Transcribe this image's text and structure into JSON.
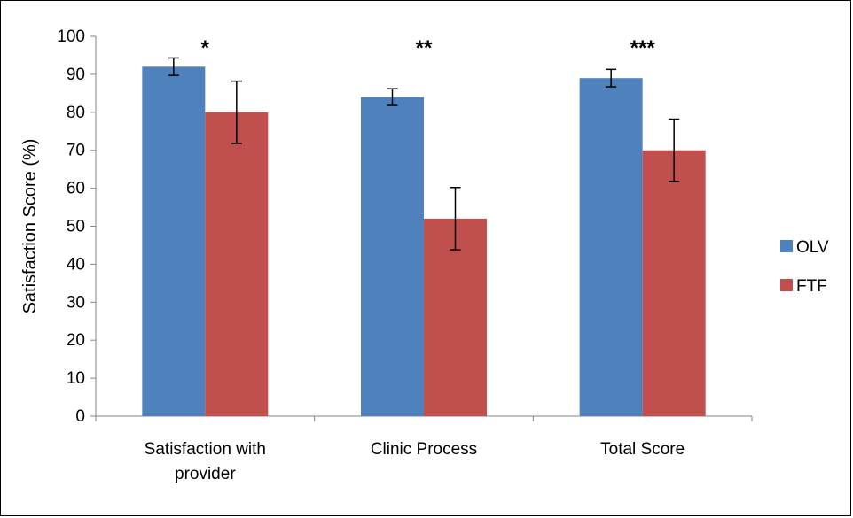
{
  "chart_data": {
    "type": "bar",
    "title": "",
    "xlabel": "",
    "ylabel": "Satisfaction Score (%)",
    "ylim": [
      0,
      100
    ],
    "yticks": [
      0,
      10,
      20,
      30,
      40,
      50,
      60,
      70,
      80,
      90,
      100
    ],
    "grid": false,
    "legend_position": "right",
    "categories": [
      [
        "Satisfaction with",
        "provider"
      ],
      [
        "Clinic Process"
      ],
      [
        "Total Score"
      ]
    ],
    "significance": [
      "*",
      "**",
      "***"
    ],
    "series": [
      {
        "name": "OLV",
        "color": "#4f81bd",
        "values": [
          92,
          84,
          89
        ],
        "errors": [
          2.3,
          2.2,
          2.3
        ]
      },
      {
        "name": "FTF",
        "color": "#c0504d",
        "values": [
          80,
          52,
          70
        ],
        "errors": [
          8.2,
          8.2,
          8.2
        ]
      }
    ]
  }
}
